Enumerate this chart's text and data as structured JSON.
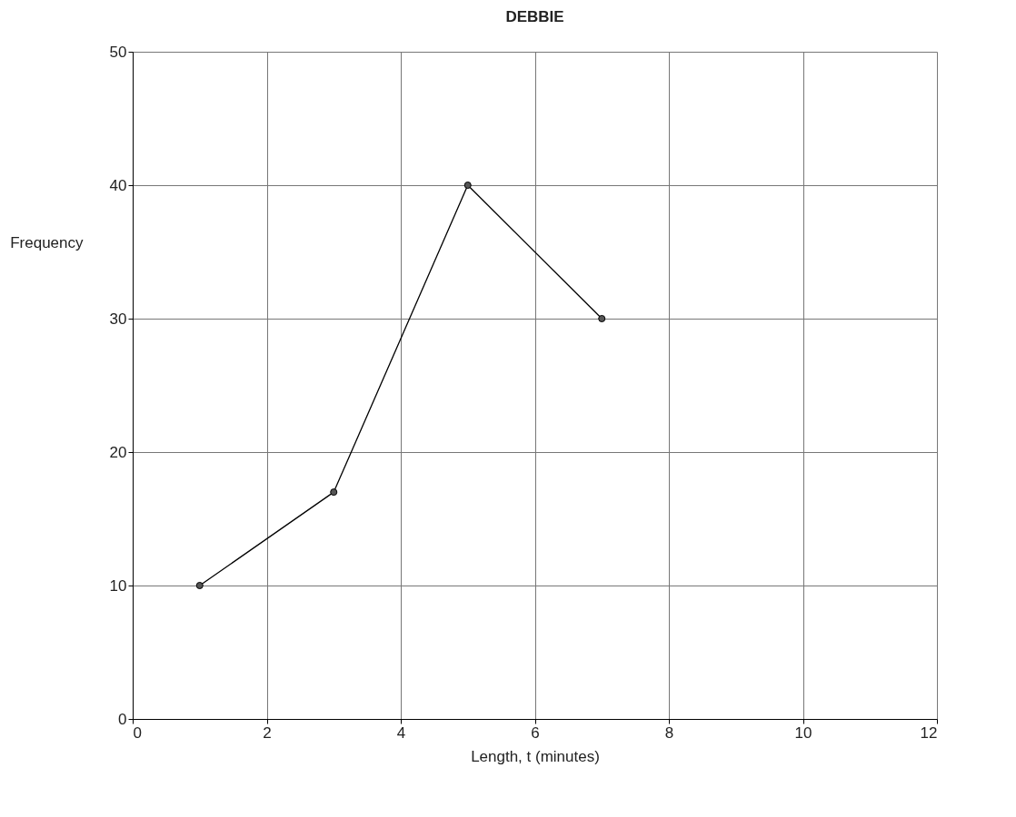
{
  "chart_data": {
    "type": "line",
    "title": "DEBBIE",
    "xlabel": "Length, t (minutes)",
    "ylabel": "Frequency",
    "x": [
      1,
      3,
      5,
      7
    ],
    "series": [
      {
        "color": "#000000",
        "values": [
          10,
          17,
          40,
          30
        ]
      }
    ],
    "xlim": [
      0,
      12
    ],
    "xticks": [
      0,
      2,
      4,
      6,
      8,
      10,
      12
    ],
    "ylim": [
      0,
      50
    ],
    "yticks": [
      0,
      10,
      20,
      30,
      40,
      50
    ],
    "grid": true,
    "marker": "circle",
    "line_style": "solid"
  }
}
